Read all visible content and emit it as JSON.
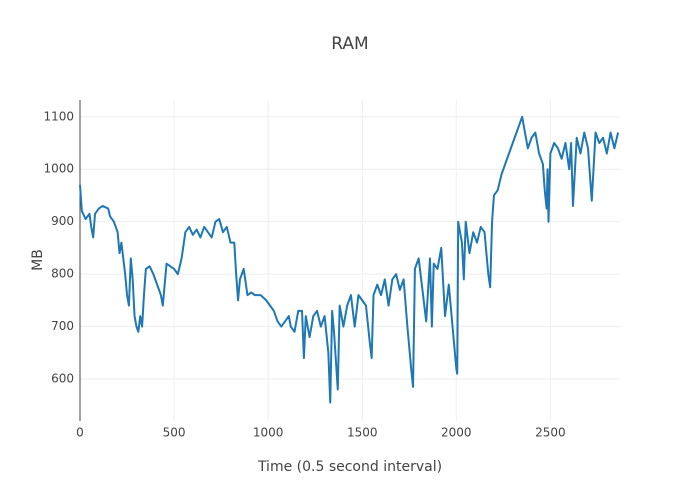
{
  "chart_data": {
    "type": "line",
    "title": "RAM",
    "xlabel": "Time (0.5 second interval)",
    "ylabel": "MB",
    "color": "#1f77b4",
    "grid": true,
    "x": [
      0,
      10,
      30,
      50,
      60,
      70,
      80,
      100,
      120,
      150,
      160,
      180,
      200,
      210,
      220,
      240,
      250,
      260,
      270,
      280,
      290,
      300,
      310,
      320,
      330,
      340,
      350,
      370,
      390,
      410,
      430,
      440,
      460,
      480,
      500,
      520,
      540,
      560,
      580,
      600,
      620,
      640,
      660,
      680,
      700,
      720,
      740,
      760,
      780,
      800,
      820,
      830,
      840,
      850,
      870,
      890,
      910,
      930,
      960,
      990,
      1010,
      1030,
      1050,
      1070,
      1090,
      1110,
      1120,
      1140,
      1160,
      1180,
      1190,
      1200,
      1220,
      1240,
      1260,
      1280,
      1300,
      1320,
      1330,
      1340,
      1350,
      1370,
      1380,
      1400,
      1420,
      1440,
      1460,
      1480,
      1500,
      1520,
      1540,
      1550,
      1560,
      1580,
      1600,
      1620,
      1640,
      1660,
      1680,
      1700,
      1720,
      1740,
      1760,
      1770,
      1780,
      1800,
      1820,
      1840,
      1860,
      1870,
      1880,
      1900,
      1920,
      1940,
      1960,
      1980,
      2000,
      2005,
      2010,
      2030,
      2040,
      2050,
      2070,
      2090,
      2110,
      2130,
      2150,
      2170,
      2180,
      2190,
      2200,
      2220,
      2240,
      2260,
      2280,
      2300,
      2320,
      2340,
      2350,
      2360,
      2380,
      2400,
      2420,
      2430,
      2440,
      2460,
      2470,
      2480,
      2485,
      2490,
      2500,
      2520,
      2540,
      2560,
      2580,
      2600,
      2610,
      2620,
      2640,
      2660,
      2680,
      2700,
      2720,
      2740,
      2760,
      2780,
      2800,
      2820,
      2840,
      2860
    ],
    "y": [
      970,
      920,
      905,
      915,
      890,
      870,
      915,
      925,
      930,
      925,
      910,
      900,
      880,
      840,
      860,
      800,
      760,
      740,
      830,
      790,
      720,
      700,
      690,
      720,
      700,
      760,
      810,
      815,
      800,
      780,
      760,
      740,
      820,
      815,
      810,
      800,
      830,
      880,
      890,
      875,
      885,
      870,
      890,
      880,
      870,
      900,
      905,
      880,
      890,
      860,
      860,
      800,
      750,
      790,
      810,
      760,
      765,
      760,
      760,
      750,
      740,
      730,
      710,
      700,
      710,
      720,
      700,
      690,
      730,
      730,
      640,
      720,
      680,
      720,
      730,
      700,
      720,
      650,
      555,
      730,
      690,
      580,
      740,
      700,
      740,
      760,
      700,
      760,
      750,
      740,
      670,
      640,
      760,
      780,
      760,
      790,
      740,
      790,
      800,
      770,
      790,
      700,
      620,
      585,
      810,
      830,
      770,
      710,
      830,
      700,
      820,
      810,
      850,
      720,
      780,
      700,
      620,
      610,
      900,
      860,
      790,
      900,
      840,
      880,
      860,
      890,
      880,
      800,
      775,
      900,
      950,
      960,
      990,
      1010,
      1030,
      1050,
      1070,
      1090,
      1100,
      1080,
      1040,
      1060,
      1070,
      1050,
      1030,
      1010,
      960,
      925,
      1000,
      900,
      1030,
      1050,
      1040,
      1020,
      1050,
      1000,
      1050,
      930,
      1060,
      1030,
      1070,
      1040,
      940,
      1070,
      1050,
      1060,
      1030,
      1070,
      1040,
      1070
    ],
    "xlim": [
      0,
      2870
    ],
    "ylim": [
      520,
      1132
    ],
    "xticks": [
      0,
      500,
      1000,
      1500,
      2000,
      2500
    ],
    "yticks": [
      600,
      700,
      800,
      900,
      1000,
      1100
    ]
  }
}
